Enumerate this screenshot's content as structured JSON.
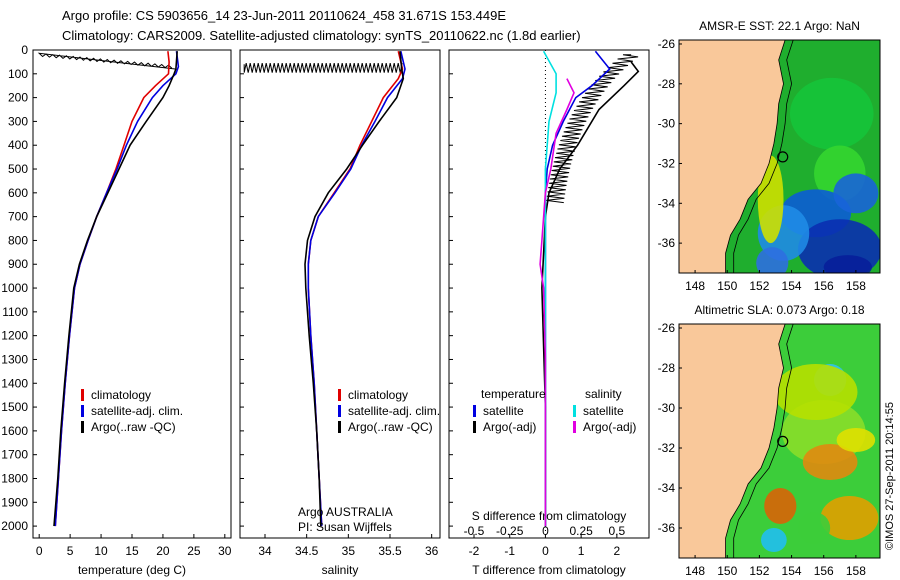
{
  "header": {
    "line1": "Argo profile: CS 5903656_14 23-Jun-2011 20110624_458 31.671S 153.449E",
    "line2": "Climatology: CARS2009. Satellite-adjusted climatology: synTS_20110622.nc (1.8d earlier)"
  },
  "colors": {
    "climatology": "#e00000",
    "satellite": "#0000e0",
    "argo": "#000000",
    "sat_diff": "#00e0e0",
    "argo_diff": "#e000e0",
    "land": "#f9c89a"
  },
  "chart_data": [
    {
      "type": "line",
      "id": "temperature",
      "xlabel": "temperature (deg C)",
      "xlim": [
        -1,
        31
      ],
      "xticks": [
        0,
        5,
        10,
        15,
        20,
        25,
        30
      ],
      "ylim": [
        0,
        2050
      ],
      "yticks": [
        0,
        100,
        200,
        300,
        400,
        500,
        600,
        700,
        800,
        900,
        1000,
        1100,
        1200,
        1300,
        1400,
        1500,
        1600,
        1700,
        1800,
        1900,
        2000
      ],
      "legend": {
        "placement": "lower-right",
        "entries": [
          "climatology",
          "satellite-adj. clim.",
          "Argo(..raw -QC)"
        ]
      },
      "series": [
        {
          "name": "climatology",
          "color": "#e00000",
          "points": [
            [
              20.8,
              5
            ],
            [
              21.0,
              50
            ],
            [
              20.9,
              100
            ],
            [
              18.8,
              150
            ],
            [
              16.9,
              200
            ],
            [
              15.0,
              300
            ],
            [
              13.7,
              400
            ],
            [
              12.4,
              500
            ],
            [
              10.9,
              600
            ],
            [
              9.3,
              700
            ],
            [
              7.9,
              800
            ],
            [
              6.6,
              900
            ],
            [
              5.7,
              1000
            ],
            [
              4.9,
              1200
            ],
            [
              4.2,
              1400
            ],
            [
              3.6,
              1600
            ],
            [
              3.1,
              1800
            ],
            [
              2.6,
              2000
            ]
          ]
        },
        {
          "name": "satellite-adj. clim.",
          "color": "#0000e0",
          "points": [
            [
              22.2,
              5
            ],
            [
              22.5,
              70
            ],
            [
              22.1,
              100
            ],
            [
              20.0,
              150
            ],
            [
              18.3,
              200
            ],
            [
              15.9,
              300
            ],
            [
              14.1,
              400
            ],
            [
              12.6,
              500
            ],
            [
              10.9,
              600
            ],
            [
              9.3,
              700
            ],
            [
              7.9,
              800
            ],
            [
              6.6,
              900
            ],
            [
              5.7,
              1000
            ],
            [
              4.9,
              1200
            ],
            [
              4.2,
              1400
            ],
            [
              3.6,
              1600
            ],
            [
              3.1,
              1800
            ],
            [
              2.6,
              2000
            ]
          ]
        },
        {
          "name": "Argo(..raw -QC)",
          "color": "#000000",
          "points": [
            [
              22.3,
              5
            ],
            [
              22.1,
              80
            ],
            [
              21.8,
              100
            ],
            [
              21.0,
              150
            ],
            [
              20.0,
              200
            ],
            [
              17.3,
              300
            ],
            [
              14.7,
              400
            ],
            [
              12.9,
              500
            ],
            [
              11.1,
              600
            ],
            [
              9.3,
              700
            ],
            [
              7.8,
              800
            ],
            [
              6.5,
              900
            ],
            [
              5.6,
              1000
            ],
            [
              4.8,
              1200
            ],
            [
              4.1,
              1400
            ],
            [
              3.5,
              1600
            ],
            [
              3.0,
              1800
            ],
            [
              2.4,
              2000
            ]
          ]
        }
      ]
    },
    {
      "type": "line",
      "id": "salinity",
      "xlabel": "salinity",
      "xlim": [
        33.7,
        36.1
      ],
      "xticks": [
        34,
        34.5,
        35,
        35.5,
        36
      ],
      "ylim": [
        0,
        2050
      ],
      "legend": {
        "placement": "lower-right",
        "entries": [
          "climatology",
          "satellite-adj. clim.",
          "Argo(..raw -QC)"
        ]
      },
      "annotation": [
        "Argo AUSTRALIA",
        "PI: Susan Wijffels"
      ],
      "series": [
        {
          "name": "climatology",
          "color": "#e00000",
          "points": [
            [
              35.6,
              5
            ],
            [
              35.65,
              80
            ],
            [
              35.6,
              120
            ],
            [
              35.42,
              200
            ],
            [
              35.28,
              300
            ],
            [
              35.14,
              400
            ],
            [
              35.02,
              500
            ],
            [
              34.83,
              600
            ],
            [
              34.64,
              700
            ],
            [
              34.55,
              800
            ],
            [
              34.52,
              900
            ],
            [
              34.52,
              1000
            ],
            [
              34.55,
              1200
            ],
            [
              34.59,
              1400
            ],
            [
              34.62,
              1600
            ],
            [
              34.65,
              1800
            ],
            [
              34.68,
              2000
            ]
          ]
        },
        {
          "name": "satellite-adj. clim.",
          "color": "#0000e0",
          "points": [
            [
              35.63,
              5
            ],
            [
              35.68,
              80
            ],
            [
              35.65,
              120
            ],
            [
              35.47,
              200
            ],
            [
              35.32,
              300
            ],
            [
              35.16,
              400
            ],
            [
              35.03,
              500
            ],
            [
              34.84,
              600
            ],
            [
              34.64,
              700
            ],
            [
              34.55,
              800
            ],
            [
              34.52,
              900
            ],
            [
              34.52,
              1000
            ],
            [
              34.55,
              1200
            ],
            [
              34.59,
              1400
            ],
            [
              34.62,
              1600
            ],
            [
              34.65,
              1800
            ],
            [
              34.68,
              2000
            ]
          ]
        },
        {
          "name": "Argo(..raw -QC)",
          "color": "#000000",
          "points": [
            [
              35.62,
              5
            ],
            [
              35.64,
              80
            ],
            [
              35.66,
              120
            ],
            [
              35.58,
              200
            ],
            [
              35.37,
              300
            ],
            [
              35.17,
              400
            ],
            [
              34.98,
              500
            ],
            [
              34.76,
              600
            ],
            [
              34.6,
              700
            ],
            [
              34.51,
              800
            ],
            [
              34.48,
              900
            ],
            [
              34.49,
              1000
            ],
            [
              34.53,
              1200
            ],
            [
              34.58,
              1400
            ],
            [
              34.62,
              1600
            ],
            [
              34.65,
              1800
            ],
            [
              34.67,
              2000
            ]
          ]
        }
      ]
    },
    {
      "type": "line",
      "id": "difference",
      "xlabel": "T difference from climatology",
      "xlabel_top": "S difference from climatology",
      "xlim": [
        -2.7,
        2.9
      ],
      "xticks": [
        -2,
        -1,
        0,
        1,
        2
      ],
      "xticks_s_labels": [
        "-0.5",
        "-0.25",
        "0",
        "0.25",
        "0.5"
      ],
      "xticks_s_pos": [
        -2,
        -1,
        0,
        1,
        2
      ],
      "ylim": [
        0,
        2050
      ],
      "legend": {
        "placement": "lower-center",
        "temperature_header": "temperature",
        "salinity_header": "salinity",
        "entries": [
          "satellite",
          "Argo(-adj)",
          "satellite",
          "Argo(-adj)"
        ]
      },
      "series": [
        {
          "name": "satellite",
          "color": "#0000e0",
          "points": [
            [
              1.4,
              5
            ],
            [
              1.8,
              80
            ],
            [
              1.3,
              150
            ],
            [
              0.85,
              200
            ],
            [
              0.5,
              300
            ],
            [
              0.2,
              400
            ],
            [
              0.05,
              500
            ],
            [
              0,
              600
            ],
            [
              0,
              2000
            ]
          ]
        },
        {
          "name": "Argo(-adj)",
          "color": "#000000",
          "points": [
            [
              2.4,
              50
            ],
            [
              2.6,
              90
            ],
            [
              2.2,
              150
            ],
            [
              1.5,
              250
            ],
            [
              0.9,
              400
            ],
            [
              0.4,
              500
            ],
            [
              0.1,
              600
            ],
            [
              0,
              700
            ],
            [
              -0.1,
              1000
            ],
            [
              0,
              1500
            ],
            [
              0,
              2000
            ]
          ]
        },
        {
          "name": "satellite",
          "color": "#00e0e0",
          "points": [
            [
              -0.05,
              5
            ],
            [
              0.3,
              100
            ],
            [
              0.3,
              180
            ],
            [
              0.1,
              300
            ],
            [
              0.05,
              400
            ],
            [
              0,
              500
            ],
            [
              0,
              2000
            ]
          ]
        },
        {
          "name": "Argo(-adj)",
          "color": "#e000e0",
          "points": [
            [
              0.6,
              120
            ],
            [
              0.8,
              180
            ],
            [
              0.6,
              250
            ],
            [
              0.3,
              350
            ],
            [
              0.15,
              500
            ],
            [
              0,
              600
            ],
            [
              -0.1,
              800
            ],
            [
              -0.15,
              900
            ],
            [
              -0.05,
              1000
            ],
            [
              0,
              1300
            ],
            [
              0,
              2000
            ]
          ]
        }
      ]
    },
    {
      "type": "heatmap",
      "id": "sst_map",
      "title": "AMSR-E SST: 22.1 Argo: NaN",
      "xlim": [
        147,
        159.5
      ],
      "xticks": [
        148,
        150,
        152,
        154,
        156,
        158
      ],
      "ylim": [
        -37.5,
        -25.8
      ],
      "yticks": [
        -26,
        -28,
        -30,
        -32,
        -34,
        -36
      ],
      "marker": {
        "lon": 153.45,
        "lat": -31.67
      }
    },
    {
      "type": "heatmap",
      "id": "sla_map",
      "title": "Altimetric SLA: 0.073 Argo: 0.18",
      "xlim": [
        147,
        159.5
      ],
      "xticks": [
        148,
        150,
        152,
        154,
        156,
        158
      ],
      "ylim": [
        -37.5,
        -25.8
      ],
      "yticks": [
        -26,
        -28,
        -30,
        -32,
        -34,
        -36
      ],
      "marker": {
        "lon": 153.45,
        "lat": -31.67
      }
    }
  ],
  "watermark": "©IMOS 27-Sep-2011 20:14:55"
}
